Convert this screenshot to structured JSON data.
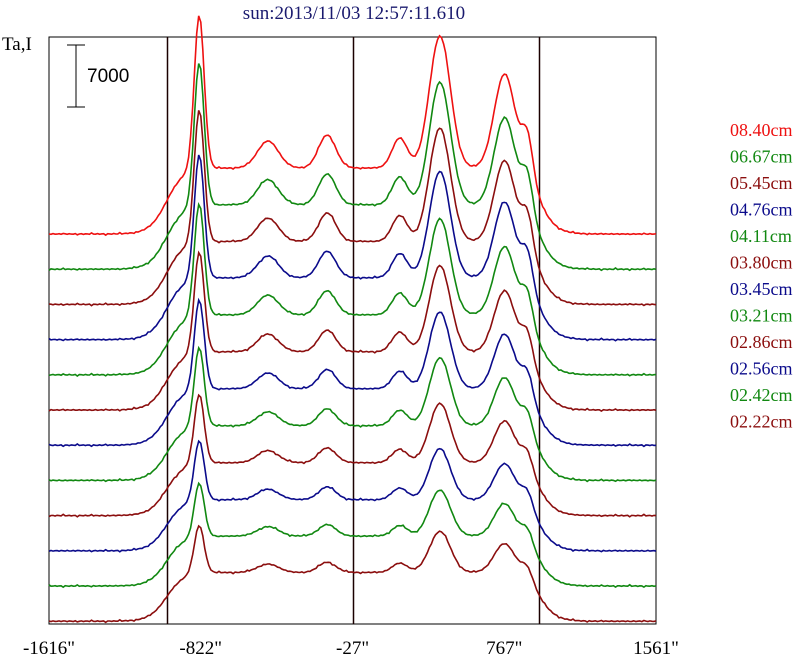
{
  "chart_data": {
    "type": "line",
    "title": "sun:2013/11/03 12:57:11.610",
    "ylabel": "Ta,I",
    "scale_bar_label": "7000",
    "scale_bar_value": 7000,
    "xlim": [
      -1616,
      1561
    ],
    "x_ticks": [
      {
        "value": -1616,
        "label": "-1616\""
      },
      {
        "value": -822,
        "label": "-822\""
      },
      {
        "value": -27,
        "label": "-27\""
      },
      {
        "value": 767,
        "label": "767\""
      },
      {
        "value": 1561,
        "label": "1561\""
      }
    ],
    "vertical_lines": [
      -1000,
      -27,
      950
    ],
    "colors": {
      "red": "#ee1111",
      "green": "#118811",
      "darkred": "#8b0e0e",
      "blue": "#0b0b8b",
      "title": "#1a1a6e"
    },
    "series": [
      {
        "name": "08.40cm",
        "color": "#ee1111",
        "scale": 1.0
      },
      {
        "name": "06.67cm",
        "color": "#118811",
        "scale": 0.95
      },
      {
        "name": "05.45cm",
        "color": "#8b0e0e",
        "scale": 0.9
      },
      {
        "name": "04.76cm",
        "color": "#0b0b8b",
        "scale": 0.86
      },
      {
        "name": "04.11cm",
        "color": "#118811",
        "scale": 0.8
      },
      {
        "name": "03.80cm",
        "color": "#8b0e0e",
        "scale": 0.74
      },
      {
        "name": "03.45cm",
        "color": "#0b0b8b",
        "scale": 0.68
      },
      {
        "name": "03.21cm",
        "color": "#118811",
        "scale": 0.62
      },
      {
        "name": "02.86cm",
        "color": "#8b0e0e",
        "scale": 0.56
      },
      {
        "name": "02.56cm",
        "color": "#0b0b8b",
        "scale": 0.5
      },
      {
        "name": "02.42cm",
        "color": "#118811",
        "scale": 0.46
      },
      {
        "name": "02.22cm",
        "color": "#8b0e0e",
        "scale": 0.42
      }
    ]
  }
}
